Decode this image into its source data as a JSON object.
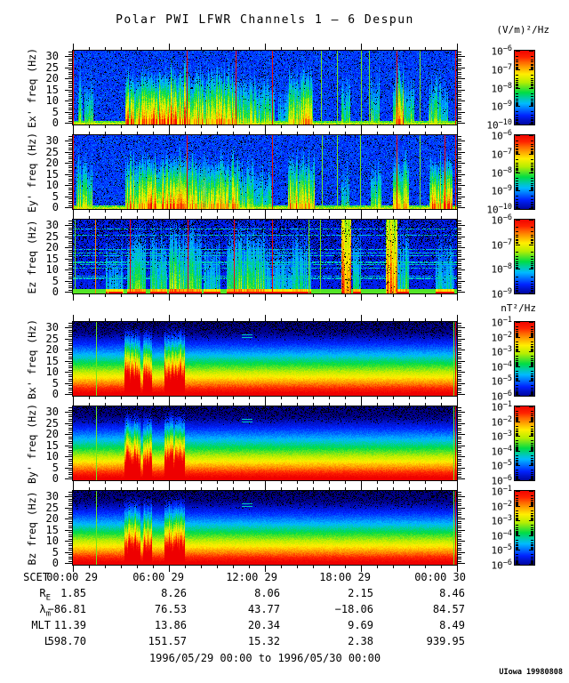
{
  "title": "Polar PWI LFWR Channels 1 — 6 Despun",
  "credit": "UIowa 19980808",
  "footer": {
    "date_range": "1996/05/29 00:00 to 1996/05/30 00:00"
  },
  "colorbar_units": {
    "electric": "(V/m)²/Hz",
    "magnetic": "nT²/Hz"
  },
  "chart_data": {
    "type": "heatmap",
    "description": "Six 0-30 Hz spectrogram panels over 24 hours, electric channels Ex' Ey' Ez and magnetic channels Bx' By' Bz",
    "time_range_hours": 24,
    "freq_range_hz": [
      0,
      32
    ],
    "y_axis": {
      "units": "Hz",
      "tick_labels": [
        "30",
        "25",
        "20",
        "15",
        "10",
        "5",
        "0"
      ],
      "tick_values": [
        30,
        25,
        20,
        15,
        10,
        5,
        0
      ]
    },
    "x_axis": {
      "label": "SCET",
      "tick_labels": [
        "00:00 29",
        "06:00 29",
        "12:00 29",
        "18:00 29",
        "00:00 30"
      ],
      "tick_hours": [
        0,
        6,
        12,
        18,
        24
      ],
      "minor_every_hours": 1
    },
    "ephemeris": {
      "rows": [
        {
          "label": "R",
          "sub": "E",
          "values": [
            "1.85",
            "8.26",
            "8.06",
            "2.15",
            "8.46"
          ]
        },
        {
          "label": "λ",
          "sub": "m",
          "values": [
            "−86.81",
            "76.53",
            "43.77",
            "−18.06",
            "84.57"
          ]
        },
        {
          "label": "MLT",
          "sub": "",
          "values": [
            "11.39",
            "13.86",
            "20.34",
            "9.69",
            "8.49"
          ]
        },
        {
          "label": "L",
          "sub": "",
          "values": [
            "598.70",
            "151.57",
            "15.32",
            "2.38",
            "939.95"
          ]
        }
      ]
    },
    "colorbar_tick_base": "10",
    "colormap": [
      [
        0.0,
        "#000088"
      ],
      [
        0.14,
        "#0022FF"
      ],
      [
        0.3,
        "#00BBFF"
      ],
      [
        0.44,
        "#00DD44"
      ],
      [
        0.58,
        "#BBEE00"
      ],
      [
        0.68,
        "#FFEE00"
      ],
      [
        0.8,
        "#FF8800"
      ],
      [
        0.9,
        "#FF2200"
      ],
      [
        1.0,
        "#EE0000"
      ]
    ],
    "panels": [
      {
        "key": "ex",
        "ylabel": "Ex' freq (Hz)",
        "type": "e_burst",
        "seed": 11,
        "cb_exponents": [
          -6,
          -7,
          -8,
          -9,
          -10
        ],
        "bursts": [
          [
            0.012,
            0.025,
            0.6
          ],
          [
            0.03,
            0.052,
            0.62
          ],
          [
            0.135,
            0.195,
            0.92
          ],
          [
            0.195,
            0.3,
            1.0
          ],
          [
            0.3,
            0.355,
            0.85
          ],
          [
            0.355,
            0.425,
            0.88
          ],
          [
            0.425,
            0.475,
            0.7
          ],
          [
            0.475,
            0.525,
            0.6
          ],
          [
            0.535,
            0.56,
            0.4
          ],
          [
            0.56,
            0.625,
            0.85
          ],
          [
            0.7,
            0.722,
            0.55
          ],
          [
            0.775,
            0.8,
            0.6
          ],
          [
            0.835,
            0.862,
            0.92
          ],
          [
            0.862,
            0.89,
            0.6
          ],
          [
            0.928,
            0.958,
            0.62
          ],
          [
            0.958,
            0.978,
            0.5
          ]
        ],
        "red_lines": [
          0.001,
          0.298,
          0.425,
          0.52,
          0.845,
          0.998
        ],
        "orange_lines": [],
        "green_lines": [
          0.648,
          0.688,
          0.752,
          0.772,
          0.905
        ]
      },
      {
        "key": "ey",
        "ylabel": "Ey' freq (Hz)",
        "type": "e_burst",
        "seed": 23,
        "cb_exponents": [
          -6,
          -7,
          -8,
          -9,
          -10
        ],
        "bursts": [
          [
            0.008,
            0.05,
            0.7
          ],
          [
            0.135,
            0.195,
            0.9
          ],
          [
            0.195,
            0.3,
            1.0
          ],
          [
            0.3,
            0.36,
            0.85
          ],
          [
            0.36,
            0.43,
            0.85
          ],
          [
            0.43,
            0.47,
            0.65
          ],
          [
            0.47,
            0.52,
            0.55
          ],
          [
            0.56,
            0.63,
            0.88
          ],
          [
            0.7,
            0.72,
            0.5
          ],
          [
            0.775,
            0.805,
            0.65
          ],
          [
            0.835,
            0.875,
            0.9
          ],
          [
            0.93,
            0.99,
            0.95
          ]
        ],
        "red_lines": [
          0.001,
          0.298,
          0.52,
          0.845,
          0.97,
          0.998
        ],
        "orange_lines": [],
        "green_lines": [
          0.65,
          0.69,
          0.75,
          0.905
        ]
      },
      {
        "key": "ez",
        "ylabel": "Ez freq (Hz)",
        "type": "e_struct",
        "seed": 37,
        "cb_exponents": [
          -6,
          -7,
          -8,
          -9
        ],
        "bursts": [
          [
            0.085,
            0.13,
            0.5
          ],
          [
            0.14,
            0.19,
            0.8
          ],
          [
            0.2,
            0.245,
            0.7
          ],
          [
            0.25,
            0.335,
            0.85
          ],
          [
            0.34,
            0.385,
            0.6
          ],
          [
            0.4,
            0.5,
            0.8
          ],
          [
            0.5,
            0.56,
            0.5
          ],
          [
            0.56,
            0.62,
            0.6
          ],
          [
            0.73,
            0.75,
            0.6
          ],
          [
            0.845,
            0.875,
            0.7
          ],
          [
            0.945,
            0.995,
            0.55
          ]
        ],
        "red_bursts": [
          [
            0.7,
            0.725,
            1.0
          ],
          [
            0.815,
            0.845,
            0.95
          ]
        ],
        "red_lines": [
          0.148,
          0.3,
          0.42,
          0.52
        ],
        "orange_lines": [
          0.057
        ],
        "green_lines": [
          0.005,
          0.615,
          0.645
        ]
      },
      {
        "key": "bx",
        "ylabel": "Bx' freq (Hz)",
        "type": "b_grad",
        "seed": 51,
        "cb_exponents": [
          -1,
          -2,
          -3,
          -4,
          -5,
          -6
        ],
        "bursts": [
          [
            0.133,
            0.175,
            0.95
          ],
          [
            0.183,
            0.205,
            0.8
          ],
          [
            0.238,
            0.292,
            0.95
          ]
        ],
        "red_lines": [
          0.998
        ],
        "orange_lines": [],
        "green_lines": [
          0.06,
          0.994
        ],
        "artifact": true
      },
      {
        "key": "by",
        "ylabel": "By' freq (Hz)",
        "type": "b_grad",
        "seed": 63,
        "cb_exponents": [
          -1,
          -2,
          -3,
          -4,
          -5,
          -6
        ],
        "bursts": [
          [
            0.133,
            0.175,
            0.9
          ],
          [
            0.183,
            0.205,
            0.8
          ],
          [
            0.238,
            0.292,
            0.92
          ]
        ],
        "red_lines": [
          0.998
        ],
        "orange_lines": [],
        "green_lines": [
          0.06,
          0.994
        ],
        "artifact": true
      },
      {
        "key": "bz",
        "ylabel": "Bz freq (Hz)",
        "type": "b_grad",
        "seed": 77,
        "cb_exponents": [
          -1,
          -2,
          -3,
          -4,
          -5,
          -6
        ],
        "bursts": [
          [
            0.133,
            0.175,
            0.85
          ],
          [
            0.183,
            0.205,
            0.75
          ],
          [
            0.238,
            0.292,
            0.88
          ]
        ],
        "red_lines": [
          0.998
        ],
        "orange_lines": [],
        "green_lines": [
          0.06,
          0.994
        ],
        "artifact": true
      }
    ]
  }
}
